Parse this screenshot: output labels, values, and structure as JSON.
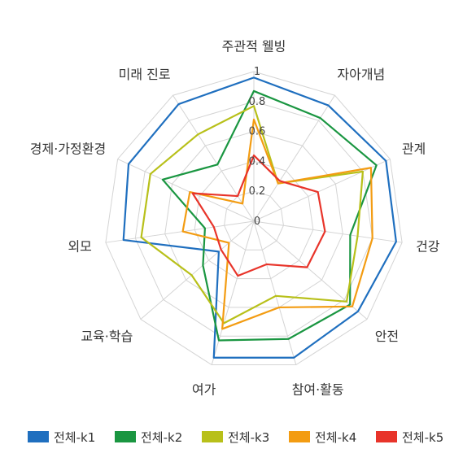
{
  "chart_data": {
    "type": "radar",
    "categories": [
      "주관적 웰빙",
      "자아개념",
      "관계",
      "건강",
      "안전",
      "참여·활동",
      "여가",
      "교육·학습",
      "외모",
      "경제·가정환경",
      "미래 진로"
    ],
    "ticks": [
      "0",
      "0.2",
      "0.4",
      "0.6",
      "0.8",
      "1"
    ],
    "rlim": [
      0,
      1
    ],
    "grid": true,
    "legend_position": "bottom",
    "series": [
      {
        "name": "전체-k1",
        "color": "#1f6fbf",
        "values": [
          0.96,
          0.92,
          0.97,
          0.96,
          0.92,
          0.95,
          0.95,
          0.31,
          0.88,
          0.92,
          0.93
        ]
      },
      {
        "name": "전체-k2",
        "color": "#1a9641",
        "values": [
          0.87,
          0.82,
          0.9,
          0.65,
          0.85,
          0.82,
          0.83,
          0.45,
          0.33,
          0.67,
          0.45
        ]
      },
      {
        "name": "전체-k3",
        "color": "#b8c01a",
        "values": [
          0.77,
          0.3,
          0.8,
          0.7,
          0.82,
          0.52,
          0.71,
          0.55,
          0.76,
          0.76,
          0.69
        ]
      },
      {
        "name": "전체-k4",
        "color": "#f39c12",
        "values": [
          0.68,
          0.3,
          0.86,
          0.8,
          0.87,
          0.6,
          0.75,
          0.22,
          0.48,
          0.47,
          0.14
        ]
      },
      {
        "name": "전체-k5",
        "color": "#e8342a",
        "values": [
          0.44,
          0.32,
          0.47,
          0.48,
          0.47,
          0.3,
          0.38,
          0.29,
          0.27,
          0.45,
          0.2
        ]
      }
    ]
  }
}
